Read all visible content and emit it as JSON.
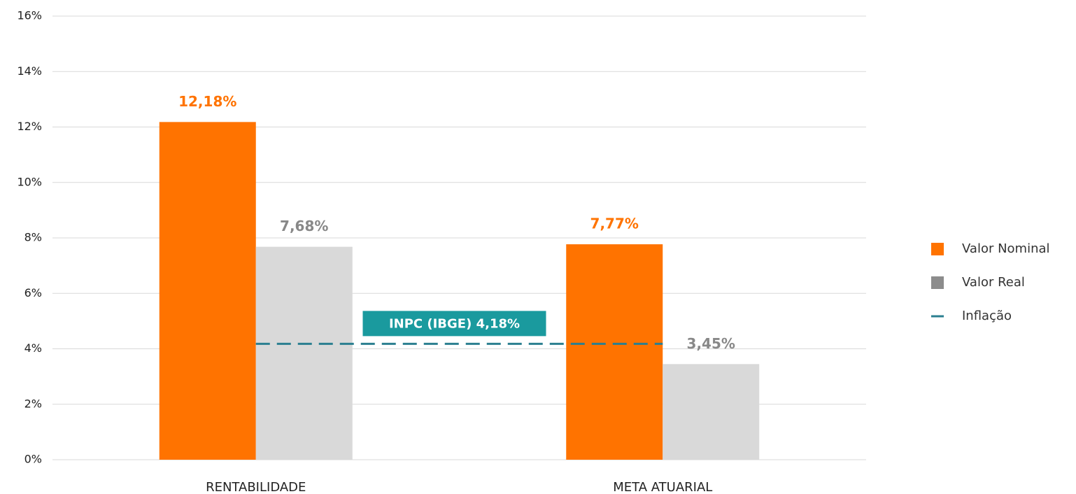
{
  "chart_data": {
    "type": "bar",
    "categories": [
      "RENTABILIDADE",
      "META ATUARIAL"
    ],
    "series": [
      {
        "name": "Valor Nominal",
        "color": "#ff7300",
        "label_color": "#ff7300",
        "values": [
          12.18,
          7.77
        ],
        "value_labels": [
          "12,18%",
          "7,77%"
        ]
      },
      {
        "name": "Valor Real",
        "color": "#d9d9d9",
        "label_color": "#888888",
        "values": [
          7.68,
          3.45
        ],
        "value_labels": [
          "7,68%",
          "3,45%"
        ]
      }
    ],
    "inflation": {
      "name": "Inflação",
      "color": "#2b7f90",
      "value": 4.18,
      "label": "INPC (IBGE) 4,18%",
      "label_fill": "#1a9a9e"
    },
    "ylim": [
      0,
      16
    ],
    "yticks": [
      {
        "value": 0,
        "label": "0%"
      },
      {
        "value": 2,
        "label": "2%"
      },
      {
        "value": 4,
        "label": "4%"
      },
      {
        "value": 6,
        "label": "6%"
      },
      {
        "value": 8,
        "label": "8%"
      },
      {
        "value": 10,
        "label": "10%"
      },
      {
        "value": 12,
        "label": "12%"
      },
      {
        "value": 14,
        "label": "14%"
      },
      {
        "value": 16,
        "label": "16%"
      }
    ],
    "grid": true,
    "legend": "right"
  }
}
